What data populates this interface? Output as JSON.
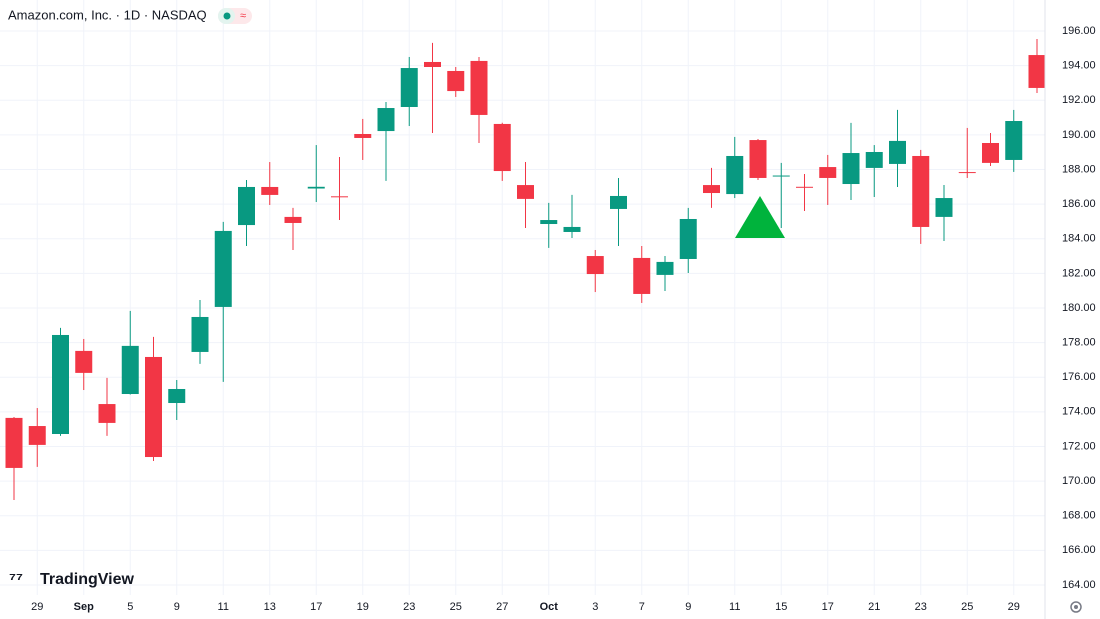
{
  "chart_data": {
    "type": "candlestick",
    "title": "Amazon.com, Inc. · 1D · NASDAQ",
    "badge": "≈",
    "watermark": "TradingView",
    "categories": [
      null,
      "29",
      null,
      "Sep",
      null,
      "5",
      null,
      "9",
      null,
      "11",
      null,
      "13",
      null,
      "17",
      null,
      "19",
      null,
      "23",
      null,
      "25",
      null,
      "27",
      null,
      "Oct",
      null,
      "3",
      null,
      "7",
      null,
      "9",
      null,
      "11",
      null,
      "15",
      null,
      "17",
      null,
      "21",
      null,
      "23",
      null,
      "25",
      null,
      "29",
      null
    ],
    "open": [
      173.65,
      173.18,
      172.72,
      177.52,
      174.45,
      175.03,
      177.17,
      174.51,
      177.46,
      180.06,
      184.79,
      186.99,
      185.26,
      186.9,
      186.45,
      190.05,
      190.22,
      191.61,
      194.21,
      193.69,
      194.27,
      190.63,
      187.1,
      184.85,
      184.39,
      183.0,
      185.72,
      182.89,
      181.91,
      182.83,
      187.1,
      186.58,
      189.7,
      187.6,
      187.0,
      188.14,
      187.16,
      188.09,
      188.32,
      188.78,
      185.26,
      187.85,
      189.53,
      188.55,
      194.61
    ],
    "high": [
      173.7,
      174.22,
      178.85,
      178.21,
      175.96,
      179.83,
      178.33,
      175.84,
      180.46,
      184.97,
      187.39,
      188.43,
      185.78,
      189.41,
      188.72,
      190.92,
      191.9,
      194.5,
      195.31,
      193.92,
      194.5,
      190.7,
      188.43,
      186.07,
      186.53,
      183.35,
      187.51,
      183.58,
      183.0,
      185.78,
      188.09,
      189.88,
      189.76,
      188.38,
      187.74,
      188.84,
      190.69,
      189.41,
      191.44,
      189.13,
      187.1,
      190.4,
      190.11,
      191.44,
      195.54
    ],
    "low": [
      168.91,
      170.82,
      172.61,
      175.26,
      172.61,
      175.0,
      171.16,
      173.53,
      176.77,
      175.73,
      183.58,
      185.95,
      183.35,
      186.12,
      185.08,
      188.55,
      187.34,
      190.51,
      190.11,
      192.19,
      189.53,
      187.34,
      184.62,
      183.47,
      184.04,
      180.92,
      183.58,
      180.29,
      180.98,
      182.02,
      185.78,
      186.35,
      187.39,
      184.62,
      185.6,
      185.95,
      186.24,
      186.41,
      186.99,
      183.7,
      183.87,
      187.51,
      188.2,
      187.86,
      192.42
    ],
    "close": [
      170.76,
      172.09,
      178.44,
      176.25,
      173.36,
      177.81,
      171.39,
      175.32,
      179.48,
      184.45,
      186.99,
      186.53,
      184.91,
      187.0,
      186.4,
      189.82,
      191.55,
      193.86,
      193.92,
      192.53,
      191.15,
      187.91,
      186.3,
      185.08,
      184.68,
      181.96,
      186.47,
      180.81,
      182.66,
      185.14,
      186.64,
      188.78,
      187.51,
      187.65,
      186.95,
      187.51,
      188.95,
      189.01,
      189.65,
      184.68,
      186.35,
      187.8,
      188.38,
      190.8,
      192.71
    ],
    "up_color": "#089981",
    "down_color": "#f23645",
    "ylim": [
      163.42,
      197.79
    ],
    "yticks": [
      {
        "value": 164,
        "label": "164.00"
      },
      {
        "value": 166,
        "label": "166.00"
      },
      {
        "value": 168,
        "label": "168.00"
      },
      {
        "value": 170,
        "label": "170.00"
      },
      {
        "value": 172,
        "label": "172.00"
      },
      {
        "value": 174,
        "label": "174.00"
      },
      {
        "value": 176,
        "label": "176.00"
      },
      {
        "value": 178,
        "label": "178.00"
      },
      {
        "value": 180,
        "label": "180.00"
      },
      {
        "value": 182,
        "label": "182.00"
      },
      {
        "value": 184,
        "label": "184.00"
      },
      {
        "value": 186,
        "label": "186.00"
      },
      {
        "value": 188,
        "label": "188.00"
      },
      {
        "value": 190,
        "label": "190.00"
      },
      {
        "value": 192,
        "label": "192.00"
      },
      {
        "value": 194,
        "label": "194.00"
      },
      {
        "value": 196,
        "label": "196.00"
      }
    ],
    "grid": true
  }
}
